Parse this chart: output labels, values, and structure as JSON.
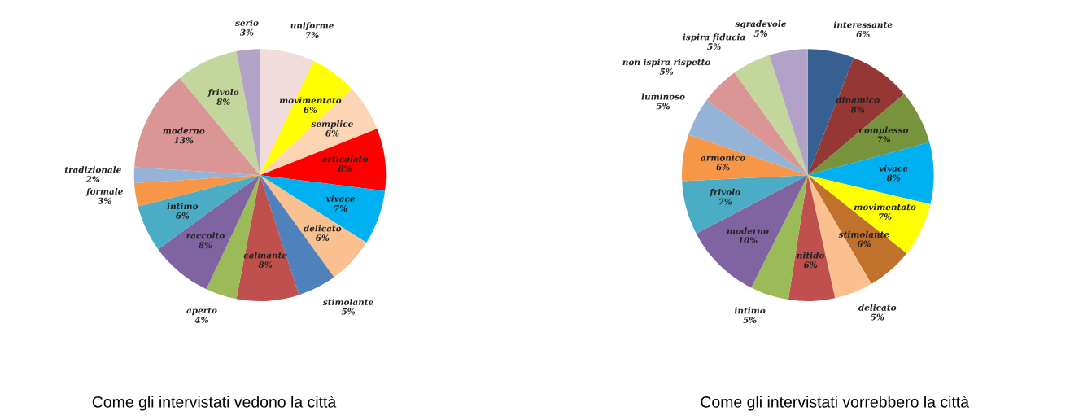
{
  "chart_data": [
    {
      "type": "pie",
      "title": "Come gli intervistati vedono la città",
      "categories": [
        "uniforme",
        "movimentato",
        "semplice",
        "articolato",
        "vivace",
        "delicato",
        "stimolante",
        "calmante",
        "aperto",
        "raccolto",
        "intimo",
        "formale",
        "tradizionale",
        "moderno",
        "frivolo",
        "serio"
      ],
      "values": [
        7,
        6,
        6,
        8,
        7,
        6,
        5,
        8,
        4,
        8,
        6,
        3,
        2,
        13,
        8,
        3
      ],
      "value_labels": [
        "7%",
        "6%",
        "6%",
        "8%",
        "7%",
        "6%",
        "5%",
        "8%",
        "4%",
        "8%",
        "6%",
        "3%",
        "2%",
        "13%",
        "8%",
        "3%"
      ],
      "colors": [
        "#f2dcdb",
        "#ffff00",
        "#fcd5b5",
        "#ff0000",
        "#00b0f0",
        "#fac090",
        "#4f81bd",
        "#c0504d",
        "#9bbb59",
        "#8064a2",
        "#4bacc6",
        "#f79646",
        "#95b3d7",
        "#d99694",
        "#c3d69b",
        "#b3a2c7"
      ]
    },
    {
      "type": "pie",
      "title": "Come gli intervistati vorrebbero la città",
      "categories": [
        "interessante",
        "dinamico",
        "complesso",
        "vivace",
        "movimentato",
        "stimolante",
        "delicato",
        "nitido",
        "intimo",
        "moderno",
        "frivolo",
        "armonico",
        "luminoso",
        "non ispira rispetto",
        "ispira fiducia",
        "sgradevole"
      ],
      "values": [
        6,
        8,
        7,
        8,
        7,
        6,
        5,
        6,
        5,
        10,
        7,
        6,
        5,
        5,
        5,
        5
      ],
      "value_labels": [
        "6%",
        "8%",
        "7%",
        "8%",
        "7%",
        "6%",
        "5%",
        "6%",
        "5%",
        "10%",
        "7%",
        "6%",
        "5%",
        "5%",
        "5%",
        "5%"
      ],
      "colors": [
        "#376092",
        "#953735",
        "#77933c",
        "#00b0f0",
        "#ffff00",
        "#c0712c",
        "#fac090",
        "#c0504d",
        "#9bbb59",
        "#8064a2",
        "#4bacc6",
        "#f79646",
        "#95b3d7",
        "#d99694",
        "#c3d69b",
        "#b3a2c7"
      ]
    }
  ]
}
